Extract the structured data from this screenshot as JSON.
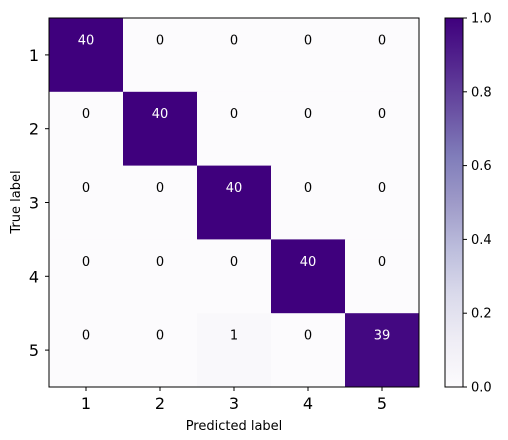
{
  "chart_data": {
    "type": "heatmap",
    "title": "",
    "xlabel": "Predicted label",
    "ylabel": "True label",
    "x_categories": [
      "1",
      "2",
      "3",
      "4",
      "5"
    ],
    "y_categories": [
      "1",
      "2",
      "3",
      "4",
      "5"
    ],
    "values": [
      [
        40,
        0,
        0,
        0,
        0
      ],
      [
        0,
        40,
        0,
        0,
        0
      ],
      [
        0,
        0,
        40,
        0,
        0
      ],
      [
        0,
        0,
        0,
        40,
        0
      ],
      [
        0,
        0,
        1,
        0,
        39
      ]
    ],
    "normalized": [
      [
        1.0,
        0.0,
        0.0,
        0.0,
        0.0
      ],
      [
        0.0,
        1.0,
        0.0,
        0.0,
        0.0
      ],
      [
        0.0,
        0.0,
        1.0,
        0.0,
        0.0
      ],
      [
        0.0,
        0.0,
        0.0,
        1.0,
        0.0
      ],
      [
        0.0,
        0.0,
        0.025,
        0.0,
        0.975
      ]
    ],
    "colormap": "Purples",
    "colorbar": {
      "range": [
        0.0,
        1.0
      ],
      "ticks": [
        "0.0",
        "0.2",
        "0.4",
        "0.6",
        "0.8",
        "1.0"
      ]
    },
    "grid": false,
    "annotation_color_dark": "#ffffff",
    "annotation_color_light": "#000000"
  }
}
